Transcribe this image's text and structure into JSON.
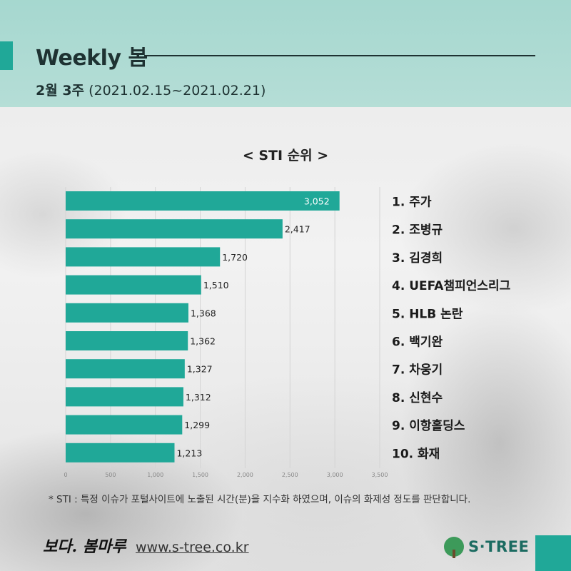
{
  "header": {
    "title": "Weekly 봄",
    "week": "2월 3주",
    "range": "(2021.02.15~2021.02.21)"
  },
  "chart_data": {
    "type": "bar",
    "orientation": "horizontal",
    "title": "< STI 순위 >",
    "categories": [
      "1. 주가",
      "2. 조병규",
      "3. 김경희",
      "4. UEFA챔피언스리그",
      "5. HLB 논란",
      "6. 백기완",
      "7. 차웅기",
      "8. 신현수",
      "9. 이항홀딩스",
      "10. 화재"
    ],
    "values": [
      3052,
      2417,
      1720,
      1510,
      1368,
      1362,
      1327,
      1312,
      1299,
      1213
    ],
    "value_labels": [
      "3,052",
      "2,417",
      "1,720",
      "1,510",
      "1,368",
      "1,362",
      "1,327",
      "1,312",
      "1,299",
      "1,213"
    ],
    "xlim": [
      0,
      3500
    ],
    "xticks": [
      0,
      500,
      1000,
      1500,
      2000,
      2500,
      3000,
      3500
    ],
    "xtick_labels": [
      "0",
      "500",
      "1,000",
      "1,500",
      "2,000",
      "2,500",
      "3,000",
      "3,500"
    ],
    "grid": true,
    "legend": "right",
    "bar_color": "#20a898"
  },
  "footnote": "* STI : 특정 이슈가 포털사이트에 노출된 시간(분)을 지수화 하였으며, 이슈의 화제성 정도를 판단합니다.",
  "footer": {
    "brand_left": "보다. 봄마루",
    "url": "www.s-tree.co.kr",
    "brand_right": "S·TREE"
  },
  "colors": {
    "accent": "#20a898",
    "header_band": "#a8d9d0"
  }
}
